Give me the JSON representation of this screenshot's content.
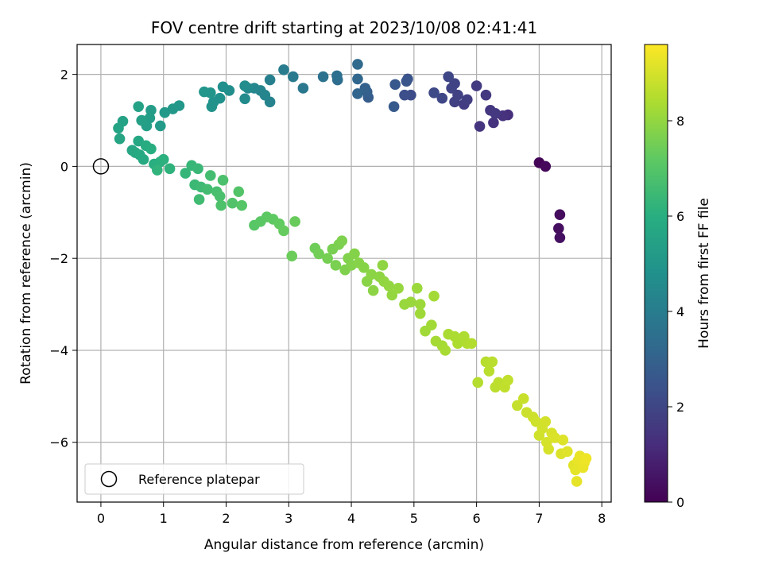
{
  "chart_data": {
    "type": "scatter",
    "title": "FOV centre drift starting at 2023/10/08 02:41:41",
    "xlabel": "Angular distance from reference (arcmin)",
    "ylabel": "Rotation from reference (arcmin)",
    "xlim": [
      -0.38,
      8.15
    ],
    "ylim": [
      -7.3,
      2.65
    ],
    "xticks": [
      0,
      1,
      2,
      3,
      4,
      5,
      6,
      7,
      8
    ],
    "xtick_labels": [
      "0",
      "1",
      "2",
      "3",
      "4",
      "5",
      "6",
      "7",
      "8"
    ],
    "yticks": [
      2,
      0,
      -2,
      -4,
      -6
    ],
    "ytick_labels": [
      "2",
      "0",
      "−2",
      "−4",
      "−6"
    ],
    "grid": true,
    "colormap": "viridis",
    "colorbar": {
      "label": "Hours from first FF file",
      "range": [
        0,
        9.6
      ],
      "ticks": [
        0,
        2,
        4,
        6,
        8
      ],
      "tick_labels": [
        "0",
        "2",
        "4",
        "6",
        "8"
      ]
    },
    "legend": {
      "position": "lower-left",
      "entries": [
        {
          "label": "Reference platepar",
          "marker": "open-circle"
        }
      ]
    },
    "reference_point": {
      "x": 0,
      "y": 0
    },
    "points": [
      {
        "x": 7.0,
        "y": 0.08,
        "h": 0.1
      },
      {
        "x": 7.1,
        "y": 0.0,
        "h": 0.2
      },
      {
        "x": 7.33,
        "y": -1.05,
        "h": 0.3
      },
      {
        "x": 7.31,
        "y": -1.35,
        "h": 0.35
      },
      {
        "x": 7.33,
        "y": -1.55,
        "h": 0.4
      },
      {
        "x": 6.5,
        "y": 1.12,
        "h": 1.3
      },
      {
        "x": 6.42,
        "y": 1.1,
        "h": 1.35
      },
      {
        "x": 6.27,
        "y": 0.95,
        "h": 1.4
      },
      {
        "x": 6.05,
        "y": 0.87,
        "h": 1.45
      },
      {
        "x": 6.22,
        "y": 1.22,
        "h": 1.5
      },
      {
        "x": 6.3,
        "y": 1.15,
        "h": 1.55
      },
      {
        "x": 6.15,
        "y": 1.55,
        "h": 1.6
      },
      {
        "x": 6.0,
        "y": 1.75,
        "h": 1.65
      },
      {
        "x": 5.8,
        "y": 1.35,
        "h": 1.7
      },
      {
        "x": 5.85,
        "y": 1.45,
        "h": 1.75
      },
      {
        "x": 5.65,
        "y": 1.4,
        "h": 1.8
      },
      {
        "x": 5.7,
        "y": 1.55,
        "h": 1.85
      },
      {
        "x": 5.6,
        "y": 1.7,
        "h": 1.9
      },
      {
        "x": 5.65,
        "y": 1.8,
        "h": 1.95
      },
      {
        "x": 5.55,
        "y": 1.95,
        "h": 2.0
      },
      {
        "x": 5.45,
        "y": 1.48,
        "h": 2.05
      },
      {
        "x": 5.32,
        "y": 1.6,
        "h": 2.1
      },
      {
        "x": 4.95,
        "y": 1.55,
        "h": 2.2
      },
      {
        "x": 4.85,
        "y": 1.55,
        "h": 2.3
      },
      {
        "x": 4.9,
        "y": 1.9,
        "h": 2.4
      },
      {
        "x": 4.88,
        "y": 1.85,
        "h": 2.5
      },
      {
        "x": 4.7,
        "y": 1.78,
        "h": 2.6
      },
      {
        "x": 4.68,
        "y": 1.3,
        "h": 2.7
      },
      {
        "x": 4.27,
        "y": 1.5,
        "h": 2.8
      },
      {
        "x": 4.25,
        "y": 1.62,
        "h": 2.9
      },
      {
        "x": 4.22,
        "y": 1.7,
        "h": 3.0
      },
      {
        "x": 4.1,
        "y": 1.58,
        "h": 3.1
      },
      {
        "x": 4.1,
        "y": 1.9,
        "h": 3.2
      },
      {
        "x": 4.1,
        "y": 2.22,
        "h": 3.3
      },
      {
        "x": 3.78,
        "y": 1.88,
        "h": 3.4
      },
      {
        "x": 3.77,
        "y": 1.97,
        "h": 3.5
      },
      {
        "x": 3.55,
        "y": 1.95,
        "h": 3.6
      },
      {
        "x": 3.23,
        "y": 1.7,
        "h": 3.8
      },
      {
        "x": 3.07,
        "y": 1.95,
        "h": 3.9
      },
      {
        "x": 2.92,
        "y": 2.1,
        "h": 4.0
      },
      {
        "x": 2.7,
        "y": 1.88,
        "h": 4.1
      },
      {
        "x": 2.7,
        "y": 1.4,
        "h": 4.2
      },
      {
        "x": 2.55,
        "y": 1.65,
        "h": 4.3
      },
      {
        "x": 2.62,
        "y": 1.55,
        "h": 4.35
      },
      {
        "x": 2.45,
        "y": 1.7,
        "h": 4.4
      },
      {
        "x": 2.35,
        "y": 1.7,
        "h": 4.5
      },
      {
        "x": 2.3,
        "y": 1.47,
        "h": 4.55
      },
      {
        "x": 2.3,
        "y": 1.75,
        "h": 4.6
      },
      {
        "x": 2.05,
        "y": 1.65,
        "h": 4.7
      },
      {
        "x": 1.95,
        "y": 1.73,
        "h": 4.75
      },
      {
        "x": 1.9,
        "y": 1.48,
        "h": 4.8
      },
      {
        "x": 1.8,
        "y": 1.4,
        "h": 4.85
      },
      {
        "x": 1.77,
        "y": 1.3,
        "h": 4.9
      },
      {
        "x": 1.75,
        "y": 1.6,
        "h": 4.95
      },
      {
        "x": 1.65,
        "y": 1.62,
        "h": 5.0
      },
      {
        "x": 1.25,
        "y": 1.32,
        "h": 5.05
      },
      {
        "x": 1.15,
        "y": 1.25,
        "h": 5.1
      },
      {
        "x": 1.02,
        "y": 1.17,
        "h": 5.15
      },
      {
        "x": 0.95,
        "y": 0.88,
        "h": 5.2
      },
      {
        "x": 0.8,
        "y": 1.22,
        "h": 5.25
      },
      {
        "x": 0.78,
        "y": 1.05,
        "h": 5.3
      },
      {
        "x": 0.73,
        "y": 0.88,
        "h": 5.35
      },
      {
        "x": 0.65,
        "y": 1.0,
        "h": 5.4
      },
      {
        "x": 0.6,
        "y": 1.3,
        "h": 5.45
      },
      {
        "x": 0.35,
        "y": 0.98,
        "h": 5.5
      },
      {
        "x": 0.28,
        "y": 0.83,
        "h": 5.55
      },
      {
        "x": 0.3,
        "y": 0.6,
        "h": 5.6
      },
      {
        "x": 0.5,
        "y": 0.35,
        "h": 5.65
      },
      {
        "x": 0.6,
        "y": 0.55,
        "h": 5.7
      },
      {
        "x": 0.55,
        "y": 0.3,
        "h": 5.75
      },
      {
        "x": 0.62,
        "y": 0.25,
        "h": 5.8
      },
      {
        "x": 0.68,
        "y": 0.15,
        "h": 5.85
      },
      {
        "x": 0.72,
        "y": 0.45,
        "h": 5.9
      },
      {
        "x": 0.8,
        "y": 0.38,
        "h": 5.95
      },
      {
        "x": 0.85,
        "y": 0.05,
        "h": 6.0
      },
      {
        "x": 0.95,
        "y": 0.1,
        "h": 6.05
      },
      {
        "x": 1.0,
        "y": 0.15,
        "h": 6.1
      },
      {
        "x": 1.1,
        "y": -0.05,
        "h": 6.15
      },
      {
        "x": 0.9,
        "y": -0.08,
        "h": 6.2
      },
      {
        "x": 1.35,
        "y": -0.15,
        "h": 6.3
      },
      {
        "x": 1.45,
        "y": 0.02,
        "h": 6.35
      },
      {
        "x": 1.55,
        "y": -0.05,
        "h": 6.4
      },
      {
        "x": 1.5,
        "y": -0.4,
        "h": 6.45
      },
      {
        "x": 1.6,
        "y": -0.45,
        "h": 6.5
      },
      {
        "x": 1.57,
        "y": -0.72,
        "h": 6.55
      },
      {
        "x": 1.7,
        "y": -0.5,
        "h": 6.6
      },
      {
        "x": 1.75,
        "y": -0.2,
        "h": 6.65
      },
      {
        "x": 1.85,
        "y": -0.55,
        "h": 6.7
      },
      {
        "x": 1.9,
        "y": -0.65,
        "h": 6.75
      },
      {
        "x": 1.95,
        "y": -0.3,
        "h": 6.8
      },
      {
        "x": 1.92,
        "y": -0.85,
        "h": 6.85
      },
      {
        "x": 2.1,
        "y": -0.8,
        "h": 6.9
      },
      {
        "x": 2.2,
        "y": -0.55,
        "h": 6.95
      },
      {
        "x": 2.25,
        "y": -0.85,
        "h": 7.0
      },
      {
        "x": 2.45,
        "y": -1.28,
        "h": 7.05
      },
      {
        "x": 2.55,
        "y": -1.2,
        "h": 7.1
      },
      {
        "x": 2.65,
        "y": -1.1,
        "h": 7.15
      },
      {
        "x": 2.75,
        "y": -1.15,
        "h": 7.2
      },
      {
        "x": 2.85,
        "y": -1.25,
        "h": 7.25
      },
      {
        "x": 2.92,
        "y": -1.4,
        "h": 7.3
      },
      {
        "x": 3.1,
        "y": -1.2,
        "h": 7.35
      },
      {
        "x": 3.05,
        "y": -1.95,
        "h": 7.4
      },
      {
        "x": 3.42,
        "y": -1.78,
        "h": 7.45
      },
      {
        "x": 3.48,
        "y": -1.9,
        "h": 7.5
      },
      {
        "x": 3.62,
        "y": -2.0,
        "h": 7.55
      },
      {
        "x": 3.7,
        "y": -1.8,
        "h": 7.6
      },
      {
        "x": 3.75,
        "y": -2.15,
        "h": 7.62
      },
      {
        "x": 3.8,
        "y": -1.7,
        "h": 7.65
      },
      {
        "x": 3.85,
        "y": -1.62,
        "h": 7.68
      },
      {
        "x": 3.9,
        "y": -2.25,
        "h": 7.7
      },
      {
        "x": 3.95,
        "y": -2.0,
        "h": 7.72
      },
      {
        "x": 4.0,
        "y": -2.15,
        "h": 7.75
      },
      {
        "x": 4.05,
        "y": -1.9,
        "h": 7.78
      },
      {
        "x": 4.12,
        "y": -2.1,
        "h": 7.8
      },
      {
        "x": 4.2,
        "y": -2.2,
        "h": 7.82
      },
      {
        "x": 4.25,
        "y": -2.5,
        "h": 7.85
      },
      {
        "x": 4.32,
        "y": -2.35,
        "h": 7.88
      },
      {
        "x": 4.35,
        "y": -2.7,
        "h": 7.9
      },
      {
        "x": 4.45,
        "y": -2.4,
        "h": 7.92
      },
      {
        "x": 4.5,
        "y": -2.15,
        "h": 7.95
      },
      {
        "x": 4.52,
        "y": -2.5,
        "h": 7.98
      },
      {
        "x": 4.6,
        "y": -2.6,
        "h": 8.0
      },
      {
        "x": 4.65,
        "y": -2.8,
        "h": 8.02
      },
      {
        "x": 4.75,
        "y": -2.65,
        "h": 8.05
      },
      {
        "x": 4.85,
        "y": -3.0,
        "h": 8.08
      },
      {
        "x": 4.95,
        "y": -2.95,
        "h": 8.1
      },
      {
        "x": 5.05,
        "y": -2.65,
        "h": 8.12
      },
      {
        "x": 5.1,
        "y": -3.0,
        "h": 8.15
      },
      {
        "x": 5.1,
        "y": -3.2,
        "h": 8.18
      },
      {
        "x": 5.18,
        "y": -3.58,
        "h": 8.2
      },
      {
        "x": 5.28,
        "y": -3.45,
        "h": 8.22
      },
      {
        "x": 5.32,
        "y": -2.82,
        "h": 8.25
      },
      {
        "x": 5.35,
        "y": -3.8,
        "h": 8.28
      },
      {
        "x": 5.45,
        "y": -3.9,
        "h": 8.3
      },
      {
        "x": 5.5,
        "y": -4.0,
        "h": 8.32
      },
      {
        "x": 5.55,
        "y": -3.65,
        "h": 8.35
      },
      {
        "x": 5.65,
        "y": -3.7,
        "h": 8.38
      },
      {
        "x": 5.7,
        "y": -3.85,
        "h": 8.4
      },
      {
        "x": 5.8,
        "y": -3.7,
        "h": 8.42
      },
      {
        "x": 5.85,
        "y": -3.85,
        "h": 8.45
      },
      {
        "x": 5.92,
        "y": -3.85,
        "h": 8.48
      },
      {
        "x": 6.02,
        "y": -4.7,
        "h": 8.5
      },
      {
        "x": 6.15,
        "y": -4.25,
        "h": 8.55
      },
      {
        "x": 6.2,
        "y": -4.45,
        "h": 8.58
      },
      {
        "x": 6.25,
        "y": -4.25,
        "h": 8.6
      },
      {
        "x": 6.3,
        "y": -4.8,
        "h": 8.62
      },
      {
        "x": 6.35,
        "y": -4.7,
        "h": 8.65
      },
      {
        "x": 6.45,
        "y": -4.8,
        "h": 8.68
      },
      {
        "x": 6.5,
        "y": -4.65,
        "h": 8.7
      },
      {
        "x": 6.65,
        "y": -5.2,
        "h": 8.75
      },
      {
        "x": 6.75,
        "y": -5.05,
        "h": 8.8
      },
      {
        "x": 6.8,
        "y": -5.35,
        "h": 8.85
      },
      {
        "x": 6.9,
        "y": -5.45,
        "h": 8.88
      },
      {
        "x": 6.95,
        "y": -5.55,
        "h": 8.9
      },
      {
        "x": 7.0,
        "y": -5.85,
        "h": 8.92
      },
      {
        "x": 7.05,
        "y": -5.7,
        "h": 8.95
      },
      {
        "x": 7.1,
        "y": -5.55,
        "h": 8.97
      },
      {
        "x": 7.12,
        "y": -6.0,
        "h": 9.0
      },
      {
        "x": 7.15,
        "y": -6.15,
        "h": 9.02
      },
      {
        "x": 7.2,
        "y": -5.8,
        "h": 9.05
      },
      {
        "x": 7.25,
        "y": -5.9,
        "h": 9.08
      },
      {
        "x": 7.35,
        "y": -6.25,
        "h": 9.1
      },
      {
        "x": 7.38,
        "y": -5.95,
        "h": 9.12
      },
      {
        "x": 7.45,
        "y": -6.2,
        "h": 9.15
      },
      {
        "x": 7.55,
        "y": -6.5,
        "h": 9.2
      },
      {
        "x": 7.58,
        "y": -6.6,
        "h": 9.22
      },
      {
        "x": 7.6,
        "y": -6.85,
        "h": 9.25
      },
      {
        "x": 7.62,
        "y": -6.4,
        "h": 9.28
      },
      {
        "x": 7.65,
        "y": -6.3,
        "h": 9.3
      },
      {
        "x": 7.7,
        "y": -6.55,
        "h": 9.32
      },
      {
        "x": 7.72,
        "y": -6.45,
        "h": 9.35
      },
      {
        "x": 7.75,
        "y": -6.35,
        "h": 9.38
      }
    ]
  }
}
